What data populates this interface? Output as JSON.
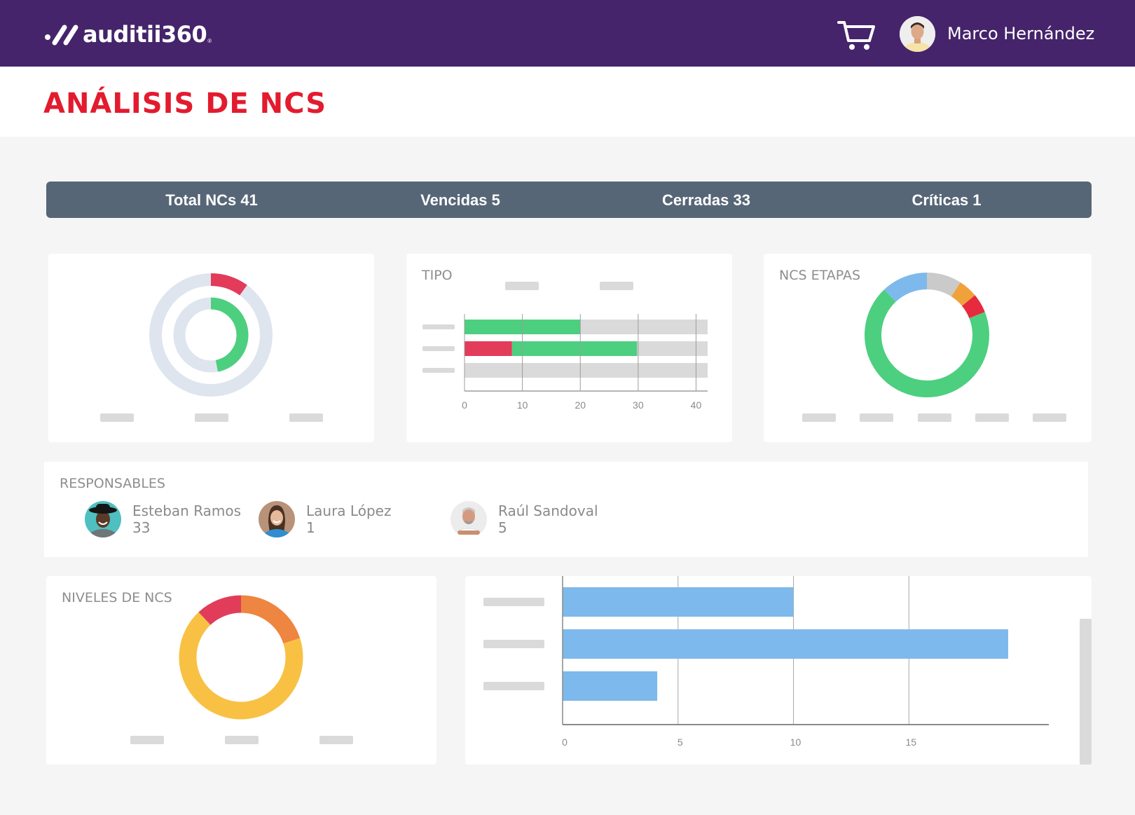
{
  "header": {
    "logo_text": "auditii360",
    "logo_reg": "®",
    "cart_icon": "shopping-cart-icon",
    "user_name": "Marco Hernández"
  },
  "page": {
    "title": "ANÁLISIS DE NCS"
  },
  "stats": [
    {
      "label": "Total NCs 41"
    },
    {
      "label": "Vencidas 5"
    },
    {
      "label": "Cerradas 33"
    },
    {
      "label": "Críticas 1"
    }
  ],
  "colors": {
    "brand_purple": "#45246b",
    "title_red": "#e31b2e",
    "stats_bar": "#566676",
    "green": "#4ccf7f",
    "red": "#e33b5a",
    "ring_bg": "#dfe5ef",
    "blue": "#7db9ec",
    "grey": "#cacaca",
    "orange": "#f0a23a",
    "crit_red": "#e62b3e",
    "level_orange": "#ee8540",
    "level_yellow": "#f8c144",
    "level_red": "#e23c5b"
  },
  "responsables": {
    "title": "RESPONSABLES",
    "people": [
      {
        "name": "Esteban Ramos",
        "count": "33"
      },
      {
        "name": "Laura López",
        "count": "1"
      },
      {
        "name": "Raúl Sandoval",
        "count": "5"
      }
    ]
  },
  "chart_data": [
    {
      "type": "pie",
      "title": "",
      "variant": "concentric-radial",
      "rings": [
        {
          "name": "outer",
          "value": 0.1,
          "color": "#e33b5a"
        },
        {
          "name": "inner",
          "value": 0.47,
          "color": "#4ccf7f"
        }
      ]
    },
    {
      "type": "bar",
      "title": "TIPO",
      "orientation": "horizontal",
      "stacked": true,
      "xlim": [
        0,
        42
      ],
      "xticks": [
        "0",
        "10",
        "20",
        "30",
        "40"
      ],
      "xtick_values": [
        0,
        10,
        20,
        30,
        40
      ],
      "series": [
        {
          "name": "red",
          "color": "#e33b5a",
          "values": [
            0,
            8.2,
            0
          ]
        },
        {
          "name": "green",
          "color": "#4ccf7f",
          "values": [
            20,
            21.6,
            0
          ]
        }
      ],
      "background_max": 42
    },
    {
      "type": "pie",
      "title": "NCS ETAPAS",
      "donut": true,
      "slices": [
        {
          "value": 9,
          "color": "#cacaca"
        },
        {
          "value": 5,
          "color": "#f0a23a"
        },
        {
          "value": 5,
          "color": "#e62b3e"
        },
        {
          "value": 69,
          "color": "#4ccf7f"
        },
        {
          "value": 12,
          "color": "#7db9ec"
        }
      ]
    },
    {
      "type": "pie",
      "title": "NIVELES DE NCS",
      "donut": true,
      "slices": [
        {
          "value": 20,
          "color": "#ee8540"
        },
        {
          "value": 68,
          "color": "#f8c144"
        },
        {
          "value": 12,
          "color": "#e23c5b"
        }
      ]
    },
    {
      "type": "bar",
      "title": "",
      "orientation": "horizontal",
      "xlim": [
        0,
        21
      ],
      "xticks": [
        "0",
        "5",
        "10",
        "15"
      ],
      "xtick_values": [
        0,
        5,
        10,
        15
      ],
      "values": [
        10,
        19.3,
        4.1
      ],
      "color": "#7db9ec"
    }
  ]
}
